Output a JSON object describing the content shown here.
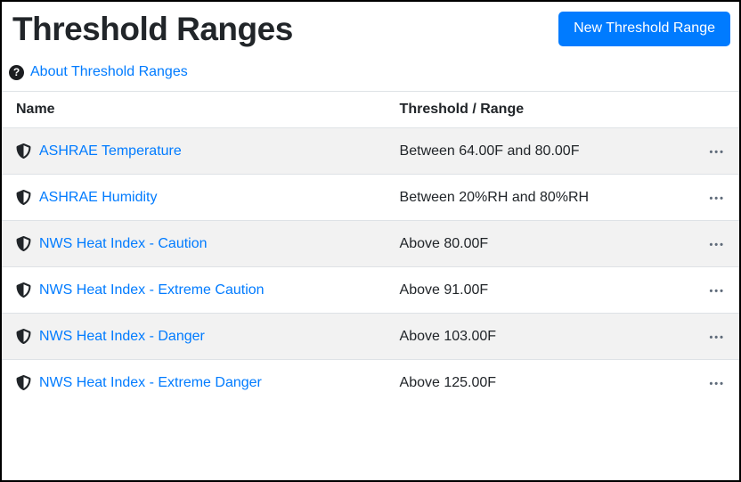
{
  "page": {
    "title": "Threshold Ranges"
  },
  "toolbar": {
    "new_button_label": "New Threshold Range"
  },
  "about": {
    "label": "About Threshold Ranges"
  },
  "table": {
    "columns": {
      "name": "Name",
      "range": "Threshold / Range"
    },
    "row_menu_label": "•••",
    "rows": [
      {
        "name": "ASHRAE Temperature",
        "range": "Between 64.00F and 80.00F"
      },
      {
        "name": "ASHRAE Humidity",
        "range": "Between 20%RH and 80%RH"
      },
      {
        "name": "NWS Heat Index - Caution",
        "range": "Above 80.00F"
      },
      {
        "name": "NWS Heat Index - Extreme Caution",
        "range": "Above 91.00F"
      },
      {
        "name": "NWS Heat Index - Danger",
        "range": "Above 103.00F"
      },
      {
        "name": "NWS Heat Index - Extreme Danger",
        "range": "Above 125.00F"
      }
    ]
  },
  "colors": {
    "accent": "#007bff",
    "link": "#007bff",
    "stripe": "#f2f2f2",
    "table_border": "#dee2e6",
    "text": "#212529",
    "icon": "#212529",
    "menu_dots": "#5f6b7a",
    "window_border": "#000000"
  }
}
